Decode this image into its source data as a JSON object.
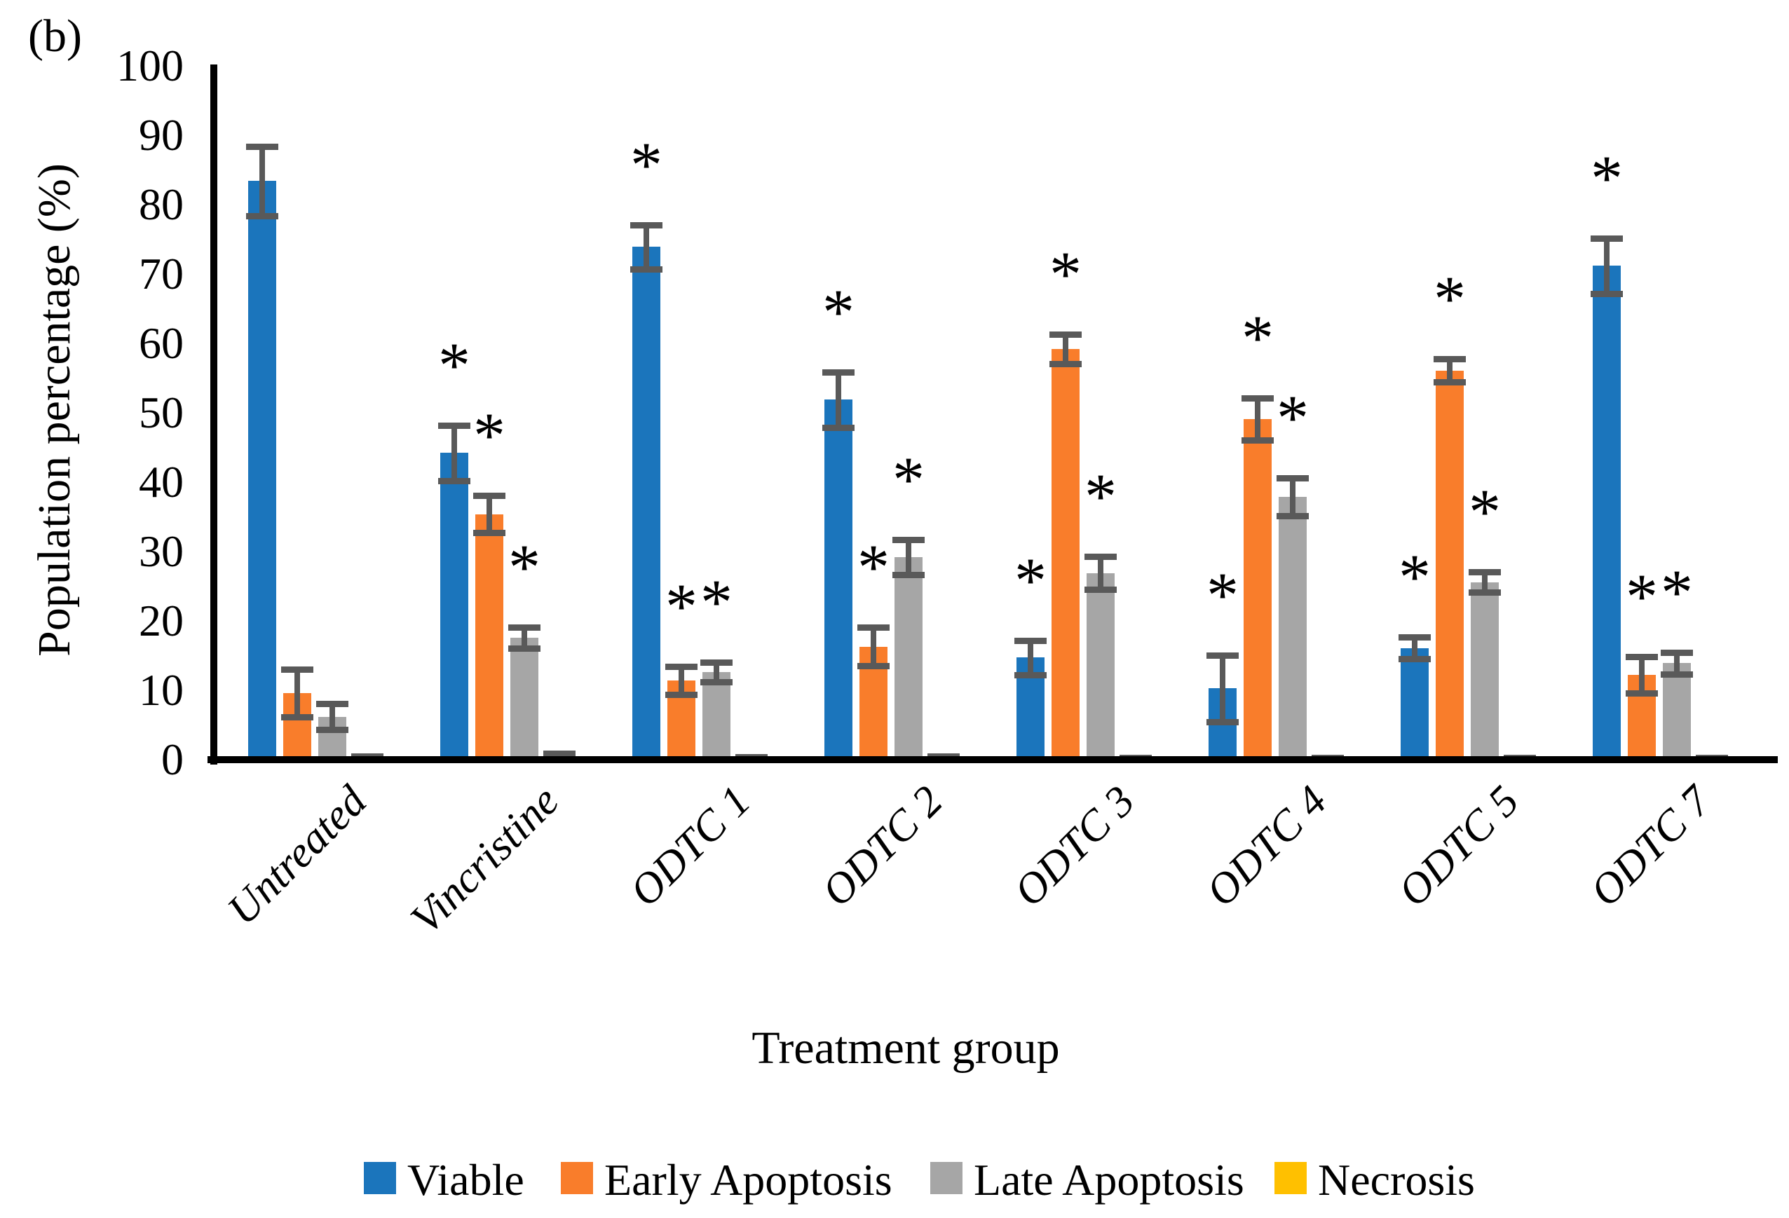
{
  "panel_label": "(b)",
  "colors": {
    "viable_blue": "#1B75BC",
    "early_apoptosis_orange": "#F97D2B",
    "late_apoptosis_gray": "#A6A6A6",
    "necrosis_yellow": "#FFC000",
    "error_bar": "#595959",
    "axis": "#000000",
    "background": "#FFFFFF"
  },
  "chart_data": {
    "type": "bar",
    "title": "",
    "xlabel": "Treatment group",
    "ylabel": "Population percentage (%)",
    "ylim": [
      0,
      100
    ],
    "yticks": [
      0,
      10,
      20,
      30,
      40,
      50,
      60,
      70,
      80,
      90,
      100
    ],
    "grid": false,
    "legend_position": "bottom",
    "significance_marker": "*",
    "categories": [
      "Untreated",
      "Vincristine",
      "ODTC 1",
      "ODTC 2",
      "ODTC 3",
      "ODTC 4",
      "ODTC 5",
      "ODTC 7"
    ],
    "series": [
      {
        "name": "Viable",
        "color": "#1B75BC",
        "values": [
          83.5,
          44.3,
          74.0,
          52.0,
          14.8,
          10.4,
          16.2,
          71.3
        ],
        "errors": [
          5.0,
          4.0,
          3.2,
          4.0,
          2.5,
          4.8,
          1.6,
          4.0
        ],
        "significant": [
          false,
          true,
          true,
          true,
          true,
          true,
          true,
          true
        ]
      },
      {
        "name": "Early Apoptosis",
        "color": "#F97D2B",
        "values": [
          9.7,
          35.5,
          11.5,
          16.4,
          59.3,
          49.2,
          56.2,
          12.3
        ],
        "errors": [
          3.4,
          2.7,
          2.0,
          2.8,
          2.1,
          3.0,
          1.7,
          2.6
        ],
        "significant": [
          false,
          true,
          true,
          true,
          true,
          true,
          true,
          true
        ]
      },
      {
        "name": "Late Apoptosis",
        "color": "#A6A6A6",
        "values": [
          6.3,
          17.7,
          12.7,
          29.3,
          27.0,
          38.0,
          25.7,
          14.0
        ],
        "errors": [
          1.9,
          1.5,
          1.4,
          2.5,
          2.4,
          2.7,
          1.5,
          1.6
        ],
        "significant": [
          false,
          true,
          true,
          true,
          true,
          true,
          true,
          true
        ]
      },
      {
        "name": "Necrosis",
        "color": "#FFC000",
        "values": [
          0.4,
          0.7,
          0.35,
          0.4,
          0.25,
          0.3,
          0.25,
          0.25
        ],
        "errors": [
          0.2,
          0.3,
          0.2,
          0.2,
          0.15,
          0.15,
          0.15,
          0.15
        ],
        "significant": [
          false,
          false,
          false,
          false,
          false,
          false,
          false,
          false
        ]
      }
    ]
  }
}
